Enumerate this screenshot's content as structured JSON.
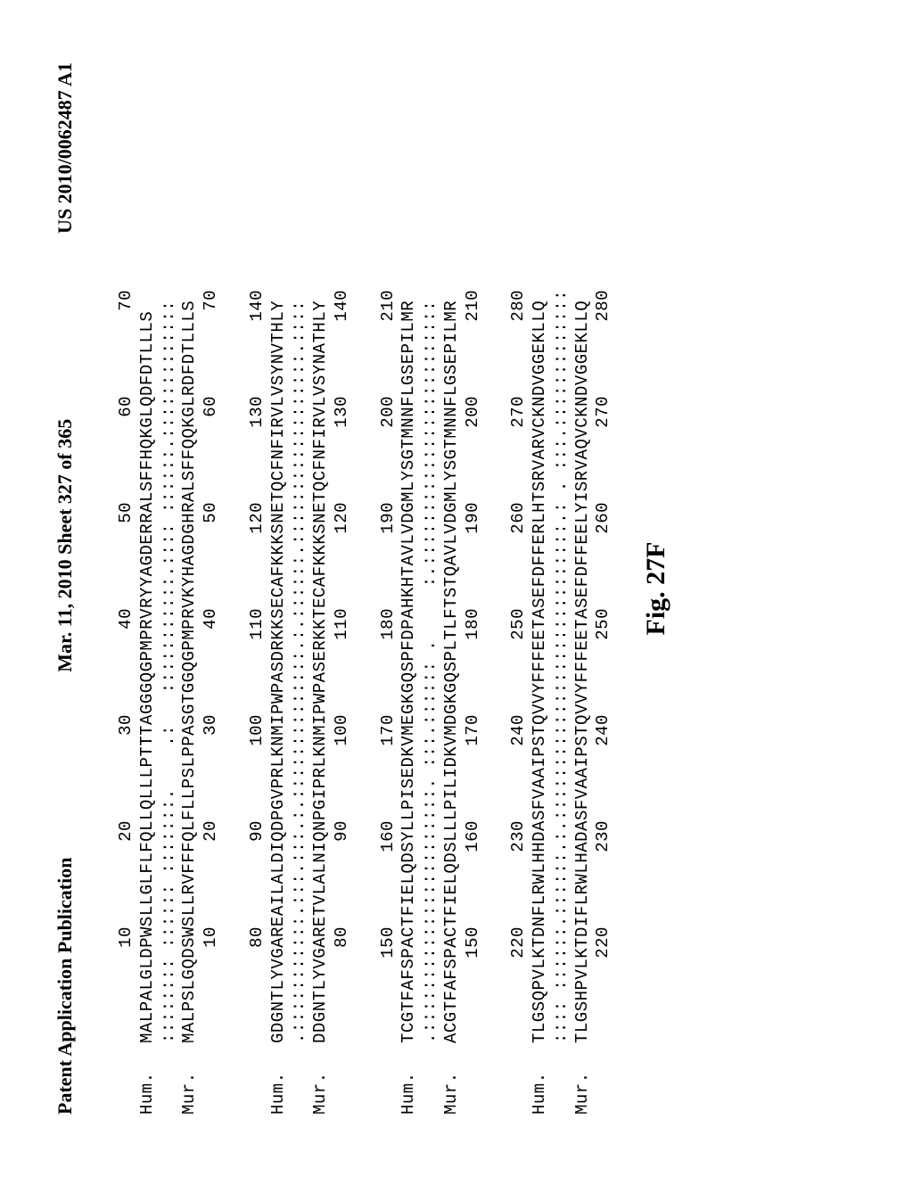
{
  "header": {
    "left": "Patent Application Publication",
    "center": "Mar. 11, 2010  Sheet 327 of 365",
    "right": "US 2010/0062487 A1"
  },
  "figure_label": "Fig. 27F",
  "blocks": [
    {
      "ruler_top": "         10        20        30        40        50        60        70",
      "hum_seq": "MALPALGLDPWSLLGLFLFQLLQLLLPTTTAGGGQGPMPRVRYYAGDERRALSFFHQKGLQDFDTLLLS",
      "match": ":::::::: :::::: :::::::.    .:   :::::::::::.:::: ::::::.:::::::::::::",
      "mur_seq": "MALPSLGQDSWSLLRVFFFQLFLLPSLPPASGTGGQGPMPRVKYHAGDGHRALSFFQQKGLRDFDTLLLS",
      "ruler_bot": "         10        20        30        40        50        60        70"
    },
    {
      "ruler_top": "         80        90       100       110       120       130       140",
      "hum_seq": "GDGNTLYVGAREAILALDIQDPGVPRLKNMIPWPASDRKKSECAFKKKSNETQCFNFIRVLVSYNVTHLY",
      "match": ".:::::::::::.:::.:::.:.::::::::::::::.:.::::::.::::::::::::::::::.::::",
      "mur_seq": "DDGNTLYVGARETVLALNIQNPGIPRLKNMIPWPASERKKTECAFKKKSNETQCFNFIRVLVSYNATHLY",
      "ruler_bot": "         80        90       100       110       120       130       140"
    },
    {
      "ruler_top": "        150       160       170       180       190       200       210",
      "hum_seq": "TCGTFAFSPACTFIELQDSYLLPISEDKVMEGKGQSPFDPAHKHTAVLVDGMLYSGTMNNFLGSEPILMR",
      "match": ".:::::::::::::::::::::::. :::.:::::: .     :.:::::::::::::::::::::::::",
      "mur_seq": "ACGTFAFSPACTFIELQDSLLLPILIDKVMDGKGQSPLTLFTSTQAVLVDGMLYSGTMNNFLGSEPILMR",
      "ruler_bot": "        150       160       170       180       190       200       210"
    },
    {
      "ruler_top": "        220       230       240       250       260       270       280",
      "hum_seq": "TLGSQPVLKTDNFLRWLHHDASFVAAIPSTQVVYFFFEETASEFDFFERLHTSRVARVCKNDVGGEKLLQ",
      "match": ":::: ::::::.::::::.:.::::::::::::::::::::::::::::.: . :::.:::::::::::::",
      "mur_seq": "TLGSHPVLKTDIFLRWLHADASFVAAIPSTQVVYFFFEETASEFDFFEELYISRVAQVCKNDVGGEKLLQ",
      "ruler_bot": "        220       230       240       250       260       270       280"
    }
  ],
  "labels": {
    "hum": "Hum.",
    "mur": "Mur."
  }
}
